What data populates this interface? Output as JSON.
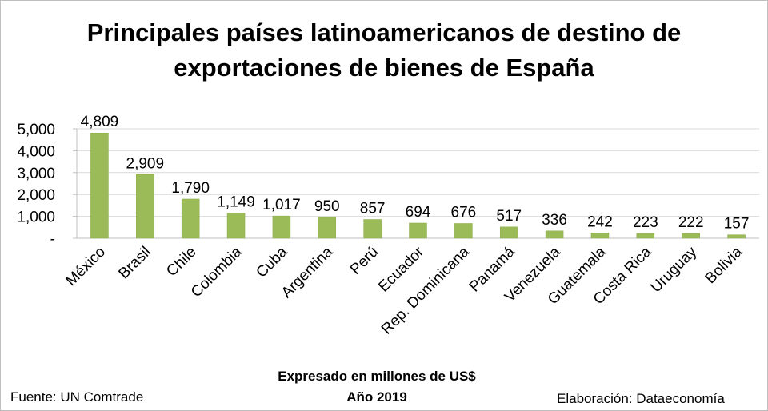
{
  "title_line1": "Principales países latinoamericanos de destino de",
  "title_line2": "exportaciones de bienes de España",
  "units_note": "Expresado en millones de US$",
  "year_note": "Año 2019",
  "source": "Fuente: UN Comtrade",
  "credit": "Elaboración: Dataeconomía",
  "colors": {
    "bar": "#9bbb59",
    "bar_edge": "#8aaa48",
    "grid": "#d9d9d9",
    "axis": "#bfbfbf"
  },
  "chart_data": {
    "type": "bar",
    "title": "Principales países latinoamericanos de destino de exportaciones de bienes de España",
    "xlabel": "",
    "ylabel": "",
    "ylim": [
      0,
      5000
    ],
    "yticks": [
      0,
      1000,
      2000,
      3000,
      4000,
      5000
    ],
    "ytick_labels": [
      "-",
      "1,000",
      "2,000",
      "3,000",
      "4,000",
      "5,000"
    ],
    "grid": true,
    "legend": "none",
    "categories": [
      "México",
      "Brasil",
      "Chile",
      "Colombia",
      "Cuba",
      "Argentina",
      "Perú",
      "Ecuador",
      "Rep. Dominicana",
      "Panamá",
      "Venezuela",
      "Guatemala",
      "Costa Rica",
      "Uruguay",
      "Bolivia"
    ],
    "values": [
      4809,
      2909,
      1790,
      1149,
      1017,
      950,
      857,
      694,
      676,
      517,
      336,
      242,
      223,
      222,
      157
    ],
    "value_labels": [
      "4,809",
      "2,909",
      "1,790",
      "1,149",
      "1,017",
      "950",
      "857",
      "694",
      "676",
      "517",
      "336",
      "242",
      "223",
      "222",
      "157"
    ]
  }
}
